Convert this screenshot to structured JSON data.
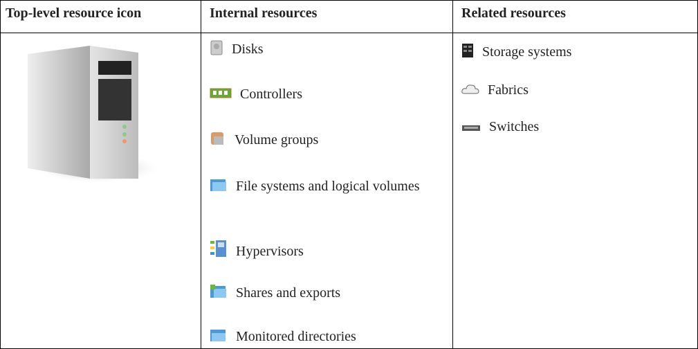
{
  "table": {
    "headers": [
      "Top-level resource icon",
      "Internal resources",
      "Related resources"
    ],
    "internal_resources": [
      "Disks",
      "Controllers",
      "Volume groups",
      "File systems and logical volumes",
      "Hypervisors",
      "Shares and exports",
      "Monitored directories"
    ],
    "related_resources": [
      "Storage systems",
      "Fabrics",
      "Switches"
    ]
  }
}
